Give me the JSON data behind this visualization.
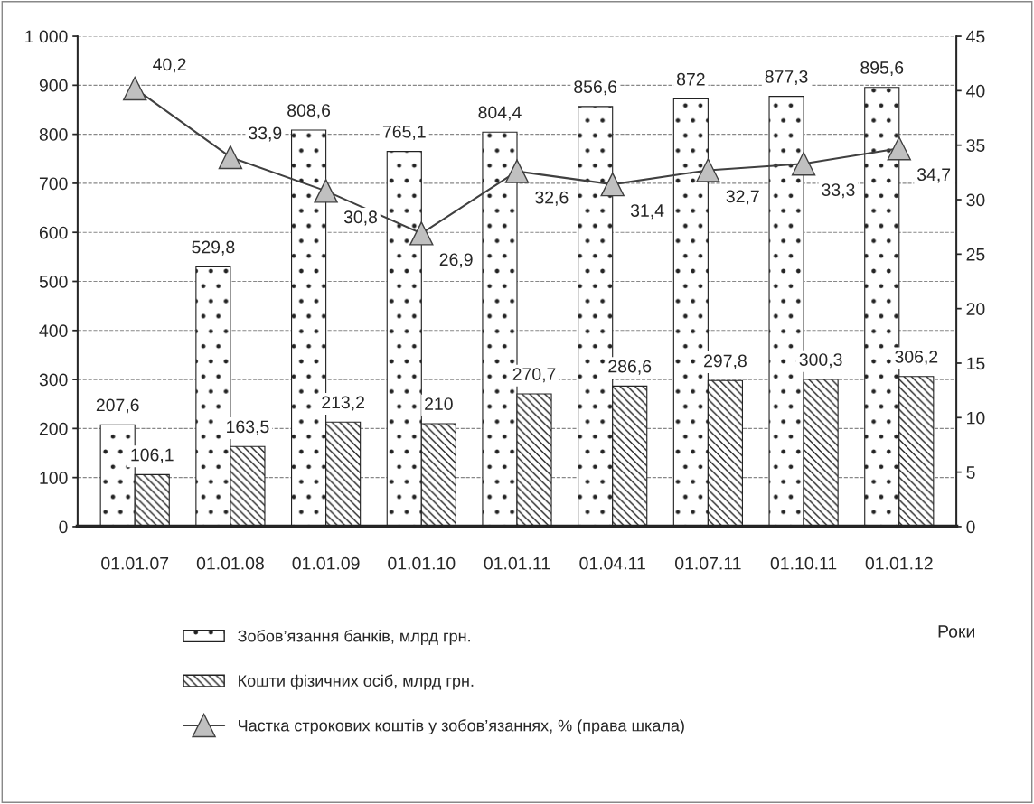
{
  "chart_data": {
    "type": "bar",
    "xlabel": "Роки",
    "categories": [
      "01.01.07",
      "01.01.08",
      "01.01.09",
      "01.01.10",
      "01.01.11",
      "01.04.11",
      "01.07.11",
      "01.10.11",
      "01.01.12"
    ],
    "series": [
      {
        "name": "Зобов’язання банків, млрд грн.",
        "color": "#222222",
        "values": [
          207.6,
          529.8,
          808.6,
          765.1,
          804.4,
          856.6,
          872,
          877.3,
          895.6
        ],
        "value_labels": [
          "207,6",
          "529,8",
          "808,6",
          "765,1",
          "804,4",
          "856,6",
          "872",
          "877,3",
          "895,6"
        ]
      },
      {
        "name": "Кошти фізичних осіб, млрд грн.",
        "color": "#222222",
        "values": [
          106.1,
          163.5,
          213.2,
          210,
          270.7,
          286.6,
          297.8,
          300.3,
          306.2
        ],
        "value_labels": [
          "106,1",
          "163,5",
          "213,2",
          "210",
          "270,7",
          "286,6",
          "297,8",
          "300,3",
          "306,2"
        ]
      },
      {
        "name": "Частка строкових коштів у зобов’язаннях, % (права шкала)",
        "type": "line",
        "axis": "y2",
        "color": "#404040",
        "marker": "triangle",
        "values": [
          40.2,
          33.9,
          30.8,
          26.9,
          32.6,
          31.4,
          32.7,
          33.3,
          34.7
        ],
        "value_labels": [
          "40,2",
          "33,9",
          "30,8",
          "26,9",
          "32,6",
          "31,4",
          "32,7",
          "33,3",
          "34,7"
        ]
      }
    ],
    "ylim": [
      0,
      1000
    ],
    "yticks": [
      0,
      100,
      200,
      300,
      400,
      500,
      600,
      700,
      800,
      900,
      {
        "value": 1000,
        "label": "1 000"
      }
    ],
    "y2lim": [
      0,
      45
    ],
    "y2ticks": [
      0,
      5,
      10,
      15,
      20,
      25,
      30,
      35,
      40,
      45
    ],
    "grid": "y",
    "legend": "bottom"
  }
}
